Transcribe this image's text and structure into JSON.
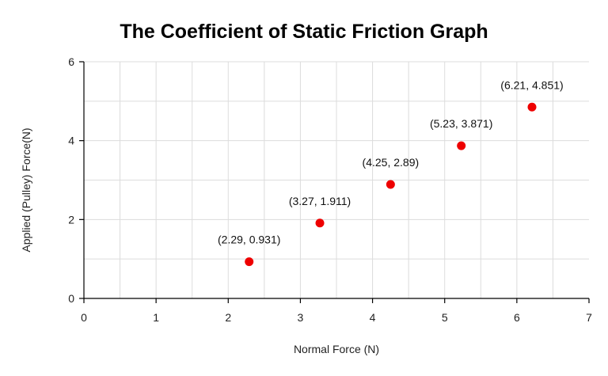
{
  "chart_data": {
    "type": "scatter",
    "title": "The Coefficient of Static Friction Graph",
    "xlabel": "Normal Force (N)",
    "ylabel": "Applied (Pulley) Force(N)",
    "xlim": [
      0,
      7
    ],
    "ylim": [
      0,
      6
    ],
    "x_ticks": [
      0,
      1,
      2,
      3,
      4,
      5,
      6,
      7
    ],
    "y_ticks": [
      0,
      2,
      4,
      6
    ],
    "grid": true,
    "point_color": "#ee0000",
    "points": [
      {
        "x": 2.29,
        "y": 0.931,
        "label": "(2.29, 0.931)"
      },
      {
        "x": 3.27,
        "y": 1.911,
        "label": "(3.27, 1.911)"
      },
      {
        "x": 4.25,
        "y": 2.89,
        "label": "(4.25, 2.89)"
      },
      {
        "x": 5.23,
        "y": 3.871,
        "label": "(5.23, 3.871)"
      },
      {
        "x": 6.21,
        "y": 4.851,
        "label": "(6.21, 4.851)"
      }
    ]
  }
}
